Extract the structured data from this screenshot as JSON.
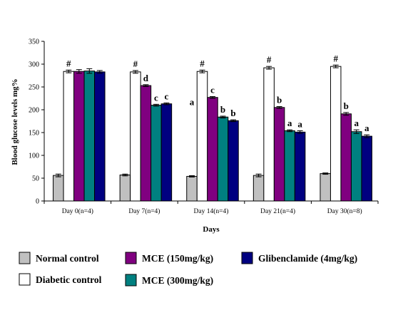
{
  "chart_data": {
    "type": "bar",
    "ylabel": "Blood glucose levels mg%",
    "xlabel": "Days",
    "ylim": [
      0,
      350
    ],
    "yticks": [
      0,
      50,
      100,
      150,
      200,
      250,
      300,
      350
    ],
    "categories": [
      "Day 0(n=4)",
      "Day 7(n=4)",
      "Day 14(n=4)",
      "Day 21(n=4)",
      "Day 30(n=8)"
    ],
    "series": [
      {
        "name": "Normal control",
        "color": "#c0c0c0",
        "values": [
          56,
          57,
          54,
          56,
          60
        ],
        "errors": [
          3,
          2,
          1.5,
          3,
          1.5
        ],
        "annotations": [
          "",
          "",
          "a",
          "",
          ""
        ]
      },
      {
        "name": "Diabetic control",
        "color": "#ffffff",
        "values": [
          284,
          283,
          284,
          292,
          295
        ],
        "errors": [
          3,
          3,
          3,
          3,
          3
        ],
        "annotations": [
          "#",
          "#",
          "#",
          "#",
          "#"
        ]
      },
      {
        "name": "MCE (150mg/kg)",
        "color": "#800080",
        "values": [
          284,
          253,
          227,
          205,
          191
        ],
        "errors": [
          4,
          2,
          2,
          2,
          3
        ],
        "annotations": [
          "",
          "d",
          "c",
          "b",
          "b"
        ]
      },
      {
        "name": "MCE (300mg/kg)",
        "color": "#008080",
        "values": [
          285,
          210,
          184,
          154,
          152
        ],
        "errors": [
          5,
          2,
          2,
          2,
          4
        ],
        "annotations": [
          "",
          "c",
          "b",
          "a",
          "a"
        ]
      },
      {
        "name": "Glibenclamide (4mg/kg)",
        "color": "#000080",
        "values": [
          283,
          213,
          176,
          151,
          142
        ],
        "errors": [
          3,
          2,
          2,
          3,
          3
        ],
        "annotations": [
          "",
          "c",
          "b",
          "a",
          "a"
        ]
      }
    ],
    "grid": false,
    "legend_placement": "bottom"
  }
}
